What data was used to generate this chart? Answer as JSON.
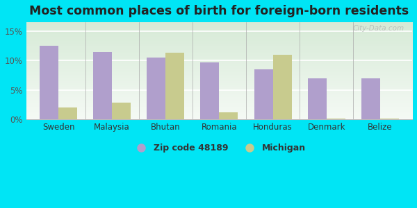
{
  "title": "Most common places of birth for foreign-born residents",
  "categories": [
    "Sweden",
    "Malaysia",
    "Bhutan",
    "Romania",
    "Honduras",
    "Denmark",
    "Belize"
  ],
  "zip_values": [
    12.5,
    11.5,
    10.5,
    9.7,
    8.5,
    7.0,
    7.0
  ],
  "mi_values": [
    2.0,
    2.8,
    11.3,
    1.2,
    11.0,
    0.2,
    0.2
  ],
  "zip_color": "#b09fcc",
  "mi_color": "#c8cb8e",
  "background_outer": "#00e5f5",
  "background_inner_top": "#d6ead6",
  "background_inner_bottom": "#f5faf5",
  "title_fontsize": 12.5,
  "ylabel_ticks": [
    0,
    5,
    10,
    15
  ],
  "ytick_labels": [
    "0%",
    "5%",
    "10%",
    "15%"
  ],
  "ylim": [
    0,
    16.5
  ],
  "legend_zip_label": "Zip code 48189",
  "legend_mi_label": "Michigan",
  "bar_width": 0.35,
  "watermark": "City-Data.com"
}
